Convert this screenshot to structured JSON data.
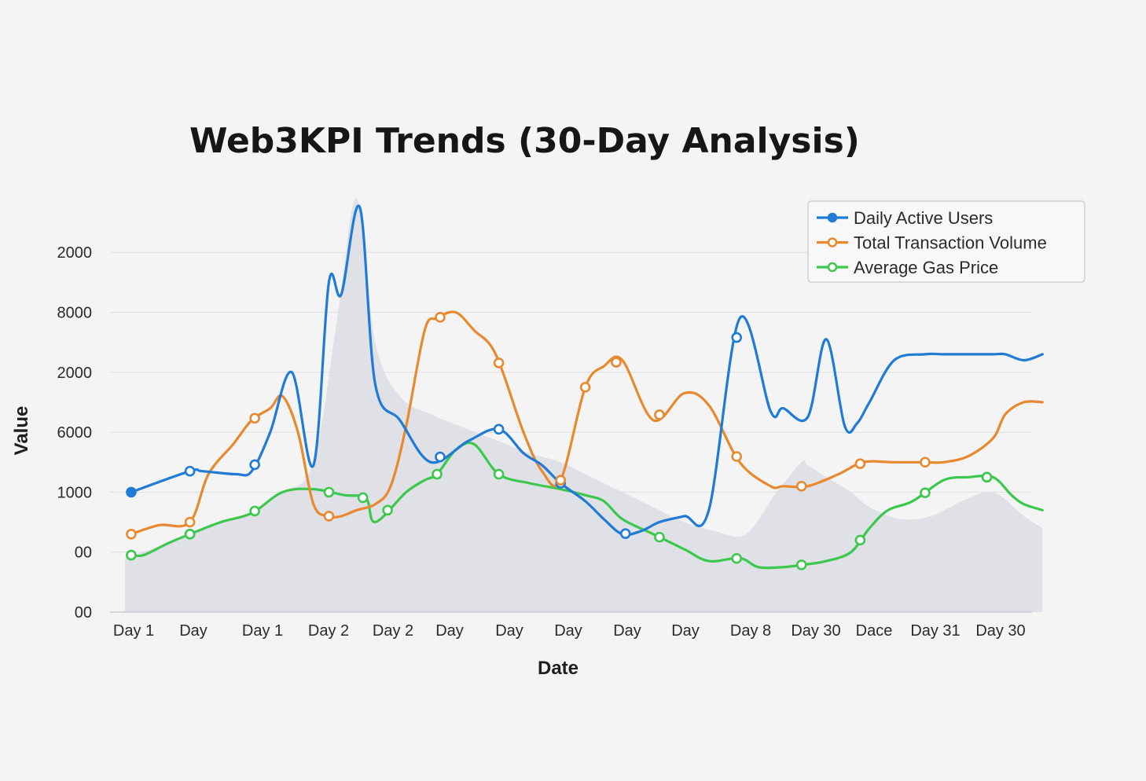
{
  "chart_data": {
    "type": "line",
    "title": "Web3KPI Trends (30-Day Analysis)",
    "xlabel": "Date",
    "ylabel": "Value",
    "x_tick_labels": [
      "Day 1",
      "Day",
      "Day 1",
      "Day 2",
      "Day 2",
      "Day",
      "Day",
      "Day",
      "Day",
      "Day",
      "Day 8",
      "Day 30",
      "Dace",
      "Day 31",
      "Day 30"
    ],
    "y_tick_labels": [
      "00",
      "00",
      "1000",
      "6000",
      "2000",
      "8000",
      "2000"
    ],
    "y_tick_positions": [
      0,
      1,
      2,
      3,
      4,
      5,
      6
    ],
    "ylim": [
      0,
      6.9
    ],
    "grid": true,
    "legend_position": "top-right",
    "series": [
      {
        "name": "Daily Active Users",
        "color": "#1f7bd6",
        "x": [
          0.05,
          1,
          1.2,
          1.75,
          2,
          2.3,
          2.65,
          3,
          3.25,
          3.45,
          3.75,
          4,
          4.4,
          4.9,
          5.5,
          6,
          6.4,
          6.7,
          7,
          7.4,
          7.7,
          8,
          8.3,
          8.6,
          9,
          9.4,
          9.9,
          10.4,
          10.6,
          11,
          11.3,
          11.6,
          11.8,
          12,
          12.4,
          12.9,
          13.2,
          13.6,
          14,
          14.2,
          14.5,
          14.8
        ],
        "y": [
          2.0,
          2.35,
          2.35,
          2.3,
          2.35,
          3.0,
          4.0,
          2.45,
          5.5,
          5.3,
          6.75,
          3.8,
          3.2,
          2.5,
          2.85,
          3.05,
          2.65,
          2.45,
          2.15,
          1.85,
          1.55,
          1.3,
          1.35,
          1.5,
          1.6,
          1.7,
          4.9,
          3.35,
          3.4,
          3.25,
          4.55,
          3.1,
          3.15,
          3.5,
          4.2,
          4.3,
          4.3,
          4.3,
          4.3,
          4.3,
          4.2,
          4.3
        ]
      },
      {
        "name": "Total Transaction Volume",
        "color": "#e8892f",
        "x": [
          0.05,
          0.5,
          1,
          1.3,
          1.7,
          2,
          2.3,
          2.5,
          2.75,
          3,
          3.25,
          3.45,
          3.7,
          4,
          4.25,
          4.5,
          4.8,
          5,
          5.3,
          5.6,
          5.95,
          6.4,
          6.7,
          7,
          7.4,
          7.7,
          8,
          8.5,
          9,
          9.4,
          9.9,
          10.4,
          10.6,
          11,
          11.5,
          11.9,
          12.4,
          12.9,
          13.2,
          13.6,
          14,
          14.2,
          14.5,
          14.8
        ],
        "y": [
          1.3,
          1.45,
          1.5,
          2.3,
          2.8,
          3.2,
          3.4,
          3.6,
          3.0,
          1.8,
          1.6,
          1.6,
          1.7,
          1.8,
          2.1,
          3.1,
          4.7,
          4.9,
          5.0,
          4.7,
          4.3,
          3.0,
          2.35,
          2.2,
          3.75,
          4.1,
          4.2,
          3.2,
          3.65,
          3.45,
          2.5,
          2.1,
          2.1,
          2.1,
          2.3,
          2.5,
          2.5,
          2.5,
          2.5,
          2.6,
          2.9,
          3.3,
          3.5,
          3.5
        ]
      },
      {
        "name": "Average Gas Price",
        "color": "#3cc84e",
        "x": [
          0.05,
          0.25,
          0.65,
          1,
          1.5,
          2,
          2.5,
          3,
          3.5,
          3.85,
          4,
          4.5,
          4.8,
          5,
          5.3,
          5.6,
          6,
          6.5,
          7,
          7.4,
          7.7,
          8,
          8.5,
          9,
          9.4,
          9.9,
          10.2,
          10.6,
          11,
          11.3,
          11.7,
          12,
          12.3,
          12.7,
          13.2,
          13.6,
          14,
          14.3,
          14.5,
          14.8
        ],
        "y": [
          0.95,
          0.95,
          1.15,
          1.3,
          1.5,
          1.65,
          2.0,
          2.05,
          1.95,
          1.9,
          1.5,
          2.0,
          2.2,
          2.3,
          2.7,
          2.8,
          2.3,
          2.15,
          2.05,
          1.95,
          1.85,
          1.55,
          1.3,
          1.05,
          0.85,
          0.9,
          0.75,
          0.75,
          0.8,
          0.85,
          1.0,
          1.4,
          1.7,
          1.85,
          2.2,
          2.25,
          2.25,
          1.95,
          1.8,
          1.7
        ]
      },
      {
        "name": "",
        "color": "#dcdde4",
        "x": [
          -0.05,
          0.5,
          1,
          1.5,
          2,
          2.5,
          3,
          3.4,
          3.7,
          4,
          4.4,
          4.9,
          5.5,
          6,
          6.5,
          7,
          7.5,
          8,
          8.5,
          9,
          9.5,
          10,
          10.5,
          10.9,
          11,
          11.3,
          11.7,
          12,
          12.5,
          13,
          13.5,
          14,
          14.5,
          14.8
        ],
        "y": [
          0.9,
          1.1,
          1.3,
          1.5,
          1.65,
          2.0,
          2.5,
          5.0,
          6.9,
          4.5,
          3.6,
          3.3,
          3.05,
          2.85,
          2.65,
          2.5,
          2.25,
          2.0,
          1.75,
          1.5,
          1.35,
          1.3,
          2.0,
          2.5,
          2.45,
          2.25,
          2.0,
          1.75,
          1.55,
          1.6,
          1.85,
          2.0,
          1.6,
          1.4
        ]
      }
    ],
    "markers": [
      {
        "series": 0,
        "x": [
          0.05,
          1,
          2,
          5,
          6,
          7,
          8,
          9.8,
          11,
          13,
          14.3
        ],
        "y": [
          2.0,
          2.35,
          2.35,
          3.05,
          3.05,
          2.45,
          1.5,
          0.95,
          0.95,
          0.95,
          0.95
        ]
      }
    ]
  }
}
